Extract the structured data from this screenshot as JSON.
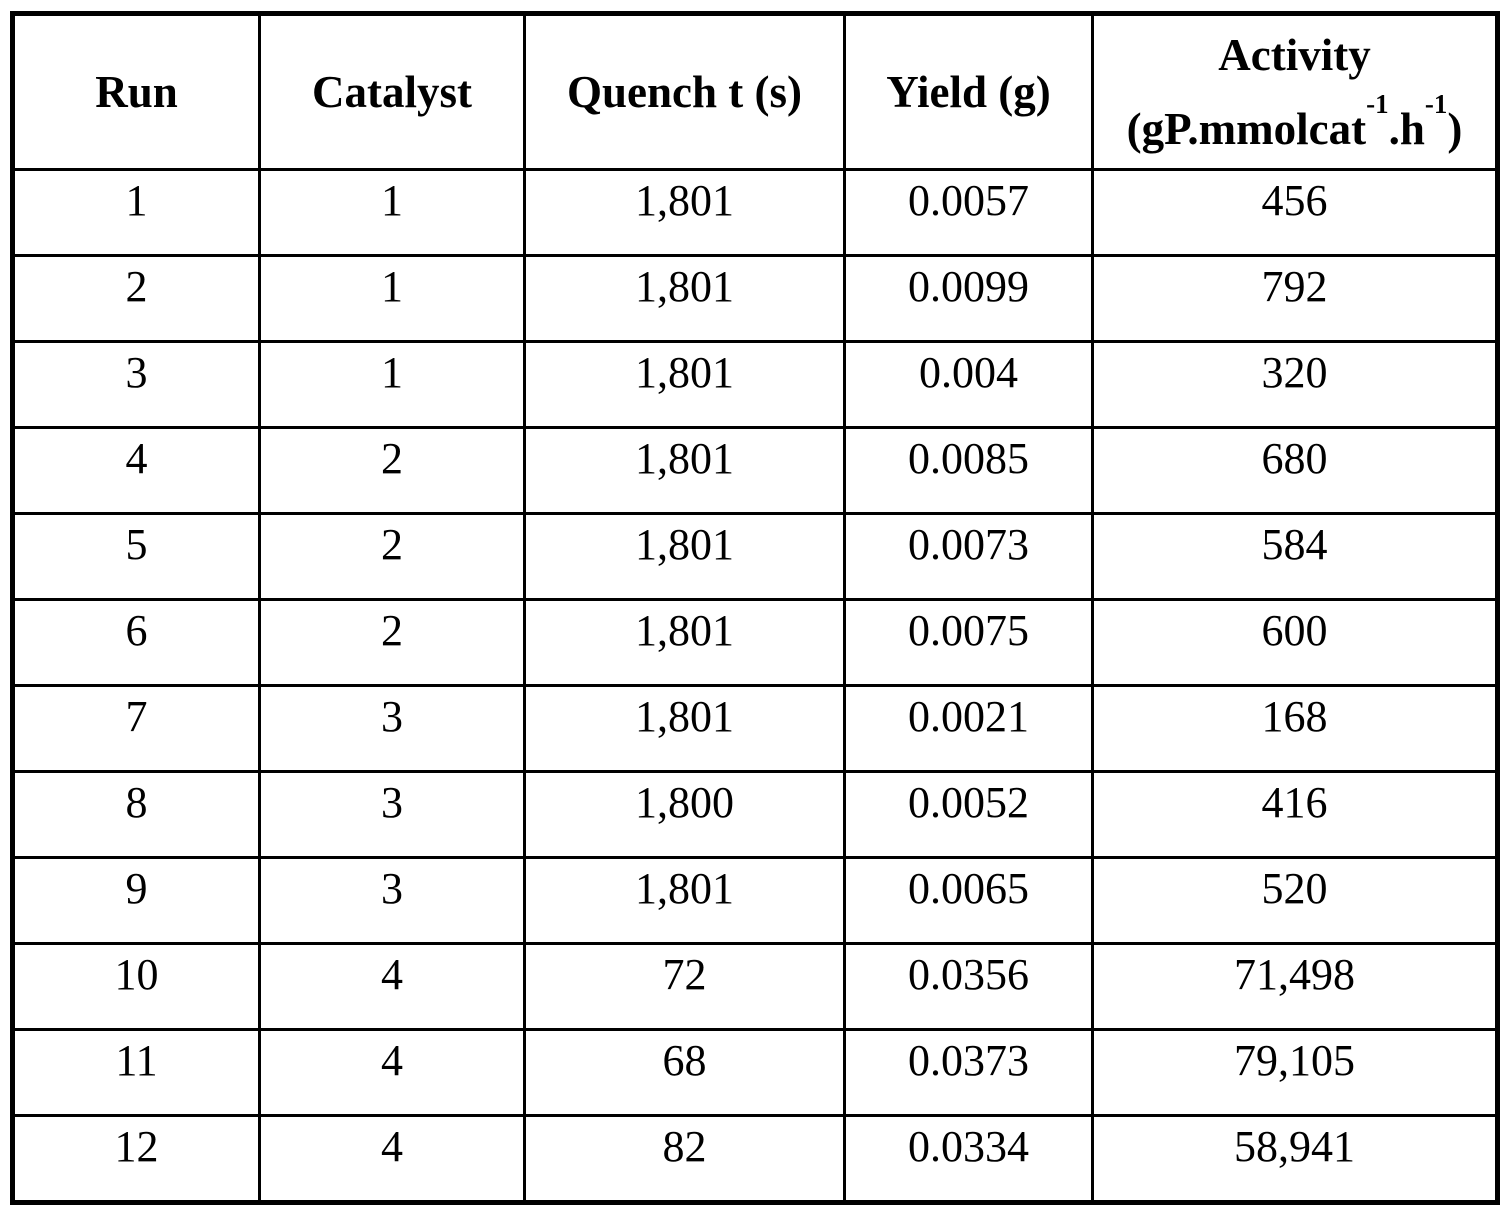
{
  "table": {
    "headers": {
      "run": "Run",
      "catalyst": "Catalyst",
      "quench": "Quench t (s)",
      "yield": "Yield (g)",
      "activity_title": "Activity",
      "activity_unit_prefix": "(gP.mmolcat",
      "activity_unit_sup1": "-1",
      "activity_unit_mid": ".h",
      "activity_unit_sup2": "-1",
      "activity_unit_suffix": ")"
    },
    "rows": [
      [
        "1",
        "1",
        "1,801",
        "0.0057",
        "456"
      ],
      [
        "2",
        "1",
        "1,801",
        "0.0099",
        "792"
      ],
      [
        "3",
        "1",
        "1,801",
        "0.004",
        "320"
      ],
      [
        "4",
        "2",
        "1,801",
        "0.0085",
        "680"
      ],
      [
        "5",
        "2",
        "1,801",
        "0.0073",
        "584"
      ],
      [
        "6",
        "2",
        "1,801",
        "0.0075",
        "600"
      ],
      [
        "7",
        "3",
        "1,801",
        "0.0021",
        "168"
      ],
      [
        "8",
        "3",
        "1,800",
        "0.0052",
        "416"
      ],
      [
        "9",
        "3",
        "1,801",
        "0.0065",
        "520"
      ],
      [
        "10",
        "4",
        "72",
        "0.0356",
        "71,498"
      ],
      [
        "11",
        "4",
        "68",
        "0.0373",
        "79,105"
      ],
      [
        "12",
        "4",
        "82",
        "0.0334",
        "58,941"
      ]
    ]
  }
}
